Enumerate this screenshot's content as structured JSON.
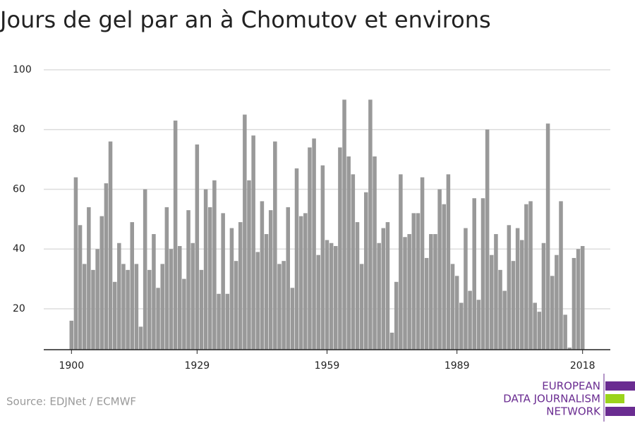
{
  "chart_data": {
    "type": "bar",
    "title": "Jours de gel par an à Chomutov et environs",
    "x": [
      1900,
      1901,
      1902,
      1903,
      1904,
      1905,
      1906,
      1907,
      1908,
      1909,
      1910,
      1911,
      1912,
      1913,
      1914,
      1915,
      1916,
      1917,
      1918,
      1919,
      1920,
      1921,
      1922,
      1923,
      1924,
      1925,
      1926,
      1927,
      1928,
      1929,
      1930,
      1931,
      1932,
      1933,
      1934,
      1935,
      1936,
      1937,
      1938,
      1939,
      1940,
      1941,
      1942,
      1943,
      1944,
      1945,
      1946,
      1947,
      1948,
      1949,
      1950,
      1951,
      1952,
      1953,
      1954,
      1955,
      1956,
      1957,
      1958,
      1959,
      1960,
      1961,
      1962,
      1963,
      1964,
      1965,
      1966,
      1967,
      1968,
      1969,
      1970,
      1971,
      1972,
      1973,
      1974,
      1975,
      1976,
      1977,
      1978,
      1979,
      1980,
      1981,
      1982,
      1983,
      1984,
      1985,
      1986,
      1987,
      1988,
      1989,
      1990,
      1991,
      1992,
      1993,
      1994,
      1995,
      1996,
      1997,
      1998,
      1999,
      2000,
      2001,
      2002,
      2003,
      2004,
      2005,
      2006,
      2007,
      2008,
      2009,
      2010,
      2011,
      2012,
      2013,
      2014,
      2015,
      2016,
      2017,
      2018
    ],
    "values": [
      16,
      64,
      48,
      35,
      54,
      33,
      40,
      51,
      62,
      76,
      29,
      42,
      35,
      33,
      49,
      35,
      14,
      60,
      33,
      45,
      27,
      35,
      54,
      40,
      83,
      41,
      30,
      53,
      42,
      75,
      33,
      60,
      54,
      63,
      25,
      52,
      25,
      47,
      36,
      49,
      85,
      63,
      78,
      39,
      56,
      45,
      53,
      76,
      35,
      36,
      54,
      27,
      67,
      51,
      52,
      74,
      77,
      38,
      68,
      43,
      42,
      41,
      74,
      90,
      71,
      65,
      49,
      35,
      59,
      90,
      71,
      42,
      47,
      49,
      12,
      29,
      65,
      44,
      45,
      52,
      52,
      64,
      37,
      45,
      45,
      60,
      55,
      65,
      35,
      31,
      22,
      47,
      26,
      57,
      23,
      57,
      80,
      38,
      45,
      33,
      26,
      48,
      36,
      47,
      43,
      55,
      56,
      22,
      19,
      42,
      82,
      31,
      38,
      56,
      18,
      7,
      37,
      40,
      41
    ],
    "color": "#999999",
    "xlim": [
      1893.6,
      2024.4
    ],
    "xticks": [
      1900,
      1929,
      1959,
      1989,
      2018
    ],
    "ylim": [
      6.3,
      100
    ],
    "yticks": [
      20,
      40,
      60,
      80,
      100
    ],
    "grid": true,
    "source": "Source: EDJNet / ECMWF",
    "logo": [
      "EUROPEAN",
      "DATA JOURNALISM",
      "NETWORK"
    ]
  }
}
